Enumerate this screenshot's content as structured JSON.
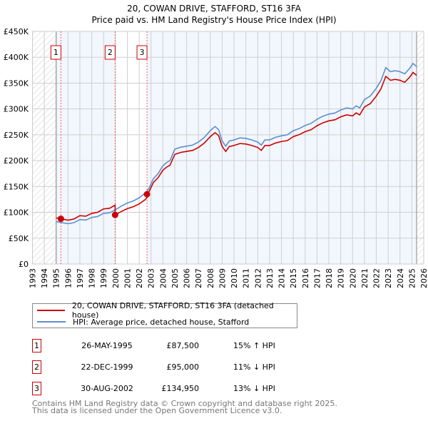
{
  "chart_data": {
    "type": "line",
    "title": "20, COWAN DRIVE, STAFFORD, ST16 3FA",
    "subtitle": "Price paid vs. HM Land Registry's House Price Index (HPI)",
    "xlim": [
      1993,
      2026
    ],
    "ylim": [
      0,
      450000
    ],
    "x_ticks": [
      "1993",
      "1994",
      "1995",
      "1996",
      "1997",
      "1998",
      "1999",
      "2000",
      "2001",
      "2002",
      "2003",
      "2004",
      "2005",
      "2006",
      "2007",
      "2008",
      "2009",
      "2010",
      "2011",
      "2012",
      "2013",
      "2014",
      "2015",
      "2016",
      "2017",
      "2018",
      "2019",
      "2020",
      "2021",
      "2022",
      "2023",
      "2024",
      "2025",
      "2026"
    ],
    "y_ticks": [
      {
        "v": 0,
        "label": "£0"
      },
      {
        "v": 50000,
        "label": "£50K"
      },
      {
        "v": 100000,
        "label": "£100K"
      },
      {
        "v": 150000,
        "label": "£150K"
      },
      {
        "v": 200000,
        "label": "£200K"
      },
      {
        "v": 250000,
        "label": "£250K"
      },
      {
        "v": 300000,
        "label": "£300K"
      },
      {
        "v": 350000,
        "label": "£350K"
      },
      {
        "v": 400000,
        "label": "£400K"
      },
      {
        "v": 450000,
        "label": "£450K"
      }
    ],
    "grid": true,
    "data_range": [
      1995.0,
      2025.4
    ],
    "series": [
      {
        "name": "20, COWAN DRIVE, STAFFORD, ST16 3FA (detached house)",
        "color": "#cc0000"
      },
      {
        "name": "HPI: Average price, detached house, Stafford",
        "color": "#5b8fd0",
        "x": [
          1995.0,
          1995.5,
          1996.0,
          1996.5,
          1997.0,
          1997.5,
          1998.0,
          1998.5,
          1999.0,
          1999.5,
          2000.0,
          2000.5,
          2001.0,
          2001.5,
          2002.0,
          2002.5,
          2002.8,
          2003.2,
          2003.6,
          2004.0,
          2004.3,
          2004.6,
          2005.0,
          2005.5,
          2006.0,
          2006.5,
          2007.0,
          2007.5,
          2008.0,
          2008.4,
          2008.7,
          2009.0,
          2009.3,
          2009.6,
          2010.0,
          2010.5,
          2011.0,
          2011.5,
          2012.0,
          2012.3,
          2012.6,
          2013.0,
          2013.5,
          2014.0,
          2014.5,
          2015.0,
          2015.5,
          2016.0,
          2016.5,
          2017.0,
          2017.5,
          2018.0,
          2018.5,
          2019.0,
          2019.5,
          2020.0,
          2020.3,
          2020.6,
          2021.0,
          2021.5,
          2022.0,
          2022.4,
          2022.8,
          2023.2,
          2023.6,
          2024.0,
          2024.4,
          2024.8,
          2025.1,
          2025.4
        ],
        "y": [
          82000,
          80000,
          78000,
          80000,
          86000,
          85000,
          90000,
          92000,
          98000,
          99000,
          105000,
          112000,
          118000,
          122000,
          128000,
          137000,
          145000,
          165000,
          175000,
          190000,
          196000,
          200000,
          222000,
          226000,
          228000,
          230000,
          236000,
          245000,
          258000,
          266000,
          260000,
          238000,
          228000,
          238000,
          240000,
          244000,
          243000,
          240000,
          236000,
          230000,
          240000,
          240000,
          245000,
          248000,
          250000,
          258000,
          262000,
          268000,
          272000,
          280000,
          286000,
          290000,
          292000,
          298000,
          302000,
          300000,
          306000,
          302000,
          318000,
          325000,
          340000,
          355000,
          380000,
          372000,
          374000,
          372000,
          368000,
          378000,
          388000,
          382000
        ]
      }
    ],
    "sales": [
      {
        "n": "1",
        "x": 1995.4,
        "y": 87500,
        "date": "26-MAY-1995",
        "price": "£87,500",
        "hpi": "15% ↑ HPI"
      },
      {
        "n": "2",
        "x": 1999.97,
        "y": 95000,
        "date": "22-DEC-1999",
        "price": "£95,000",
        "hpi": "11% ↓ HPI"
      },
      {
        "n": "3",
        "x": 2002.66,
        "y": 134950,
        "date": "30-AUG-2002",
        "price": "£134,950",
        "hpi": "13% ↓ HPI"
      }
    ]
  },
  "legend": {
    "property": "20, COWAN DRIVE, STAFFORD, ST16 3FA (detached house)",
    "hpi": "HPI: Average price, detached house, Stafford"
  },
  "footer": {
    "line1": "Contains HM Land Registry data © Crown copyright and database right 2025.",
    "line2": "This data is licensed under the Open Government Licence v3.0."
  }
}
